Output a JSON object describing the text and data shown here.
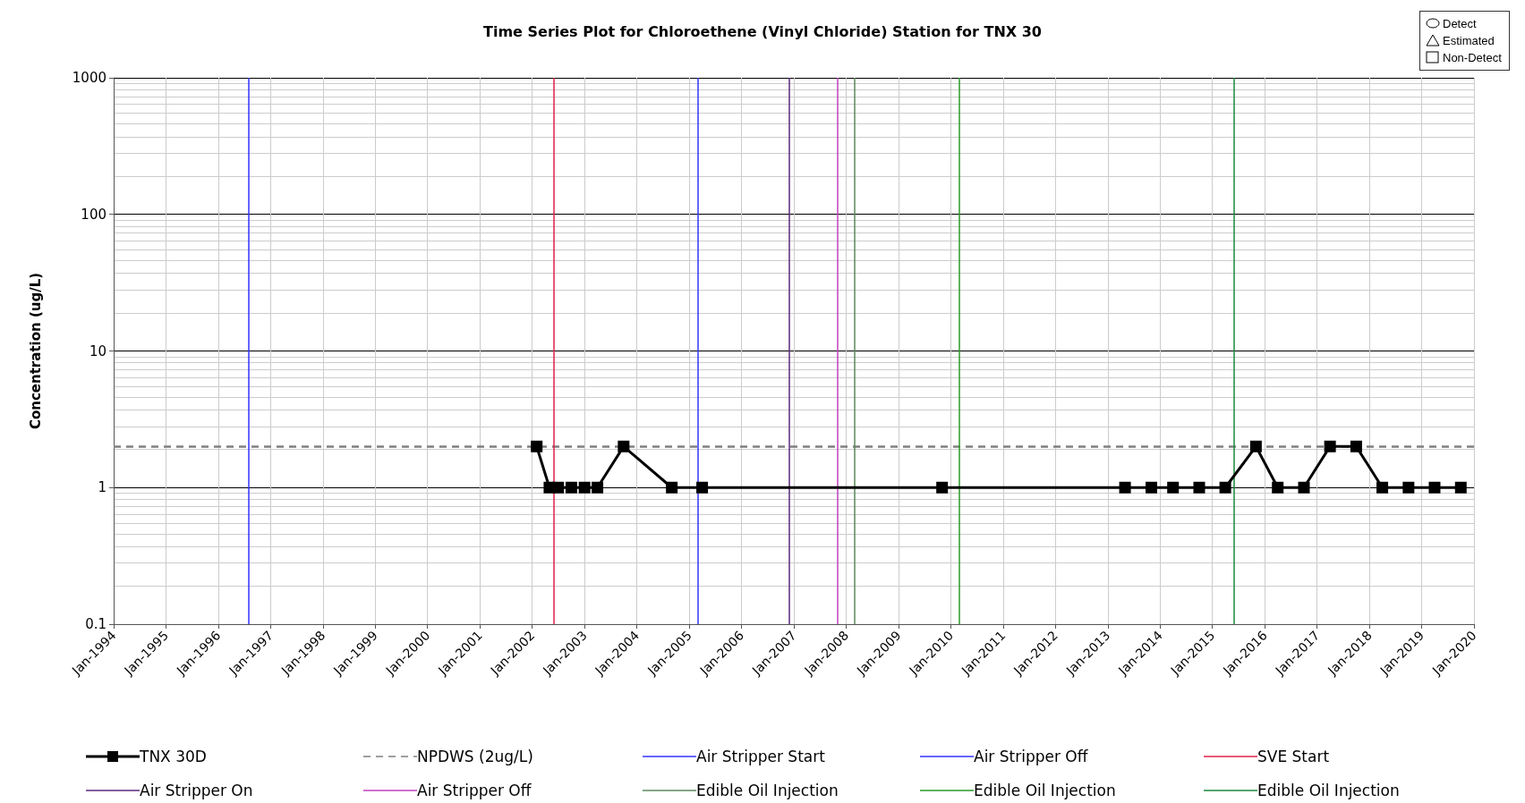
{
  "chart_data": {
    "type": "line",
    "title": "Time Series Plot for Chloroethene (Vinyl Chloride) Station for TNX 30",
    "ylabel": "Concentration (ug/L)",
    "annotations": [
      "Detect",
      "Estimated",
      "Non-Detect"
    ],
    "series": [
      {
        "name": "TNX 30D",
        "color": "#000000",
        "marker": "square",
        "x": [
          "2002-02",
          "2002-05",
          "2002-07",
          "2002-10",
          "2003-01",
          "2003-04",
          "2003-10",
          "2004-09",
          "2005-04",
          "2009-11",
          "2013-05",
          "2013-11",
          "2014-04",
          "2014-10",
          "2015-04",
          "2015-11",
          "2016-04",
          "2016-10",
          "2017-04",
          "2017-10",
          "2018-04",
          "2018-10",
          "2019-04",
          "2019-10"
        ],
        "values": [
          2,
          1,
          1,
          1,
          1,
          1,
          2,
          1,
          1,
          1,
          1,
          1,
          1,
          1,
          1,
          2,
          1,
          1,
          2,
          2,
          1,
          1,
          1,
          1
        ]
      }
    ],
    "ref_lines": [
      {
        "axis": "y",
        "value": 2,
        "label": "NPDWS (2ug/L)",
        "color": "#808080",
        "line_style": "dashed"
      },
      {
        "axis": "x",
        "value": "1996-08",
        "label": "Air Stripper Start",
        "color": "#3333ff"
      },
      {
        "axis": "x",
        "value": "2005-03",
        "label": "Air Stripper Off",
        "color": "#3333ff"
      },
      {
        "axis": "x",
        "value": "2002-06",
        "label": "SVE Start",
        "color": "#e0204a"
      },
      {
        "axis": "x",
        "value": "2006-12",
        "label": "Air Stripper On",
        "color": "#5a2a7a"
      },
      {
        "axis": "x",
        "value": "2007-11",
        "label": "Air Stripper Off",
        "color": "#c040c0"
      },
      {
        "axis": "x",
        "value": "2008-03",
        "label": "Edible Oil Injection",
        "color": "#5a8a5a"
      },
      {
        "axis": "x",
        "value": "2010-03",
        "label": "Edible Oil Injection",
        "color": "#2a9a2a"
      },
      {
        "axis": "x",
        "value": "2015-06",
        "label": "Edible Oil Injection",
        "color": "#1a8a3a"
      }
    ],
    "xlim": [
      "1994-01",
      "2020-01"
    ],
    "xticks": [
      {
        "value": "1994-01",
        "label": "Jan-1994"
      },
      {
        "value": "1995-01",
        "label": "Jan-1995"
      },
      {
        "value": "1996-01",
        "label": "Jan-1996"
      },
      {
        "value": "1997-01",
        "label": "Jan-1997"
      },
      {
        "value": "1998-01",
        "label": "Jan-1998"
      },
      {
        "value": "1999-01",
        "label": "Jan-1999"
      },
      {
        "value": "2000-01",
        "label": "Jan-2000"
      },
      {
        "value": "2001-01",
        "label": "Jan-2001"
      },
      {
        "value": "2002-01",
        "label": "Jan-2002"
      },
      {
        "value": "2003-01",
        "label": "Jan-2003"
      },
      {
        "value": "2004-01",
        "label": "Jan-2004"
      },
      {
        "value": "2005-01",
        "label": "Jan-2005"
      },
      {
        "value": "2006-01",
        "label": "Jan-2006"
      },
      {
        "value": "2007-01",
        "label": "Jan-2007"
      },
      {
        "value": "2008-01",
        "label": "Jan-2008"
      },
      {
        "value": "2009-01",
        "label": "Jan-2009"
      },
      {
        "value": "2010-01",
        "label": "Jan-2010"
      },
      {
        "value": "2011-01",
        "label": "Jan-2011"
      },
      {
        "value": "2012-01",
        "label": "Jan-2012"
      },
      {
        "value": "2013-01",
        "label": "Jan-2013"
      },
      {
        "value": "2014-01",
        "label": "Jan-2014"
      },
      {
        "value": "2015-01",
        "label": "Jan-2015"
      },
      {
        "value": "2016-01",
        "label": "Jan-2016"
      },
      {
        "value": "2017-01",
        "label": "Jan-2017"
      },
      {
        "value": "2018-01",
        "label": "Jan-2018"
      },
      {
        "value": "2019-01",
        "label": "Jan-2019"
      },
      {
        "value": "2020-01",
        "label": "Jan-2020"
      }
    ],
    "ylim": [
      0.1,
      1000
    ],
    "yticks": [
      0.1,
      1,
      10,
      100,
      1000
    ],
    "log": "y",
    "grid": true,
    "legend": "bottom"
  }
}
